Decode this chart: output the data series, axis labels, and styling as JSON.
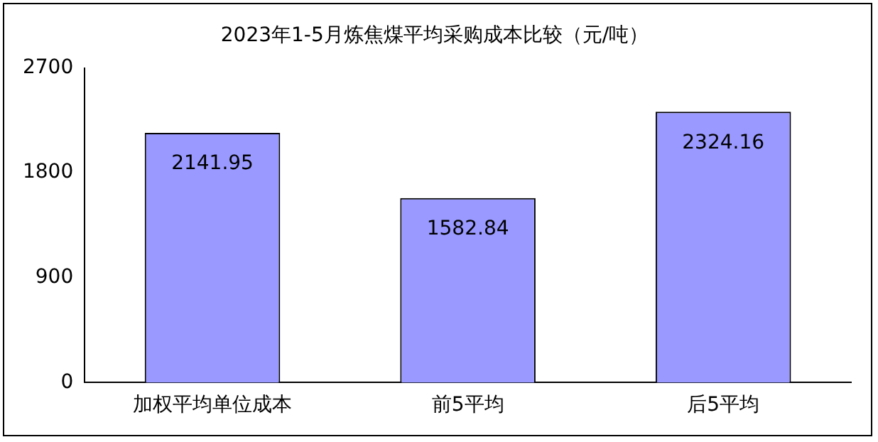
{
  "chart_data": {
    "type": "bar",
    "title": "2023年1-5月炼焦煤平均采购成本比较（元/吨）",
    "categories": [
      "加权平均单位成本",
      "前5平均",
      "后5平均"
    ],
    "values": [
      2141.95,
      1582.84,
      2324.16
    ],
    "color": "#9999ff",
    "ylim": [
      0,
      2700
    ],
    "yticks": [
      0,
      900,
      1800,
      2700
    ],
    "grid": false,
    "legend": false,
    "data_labels": true
  }
}
